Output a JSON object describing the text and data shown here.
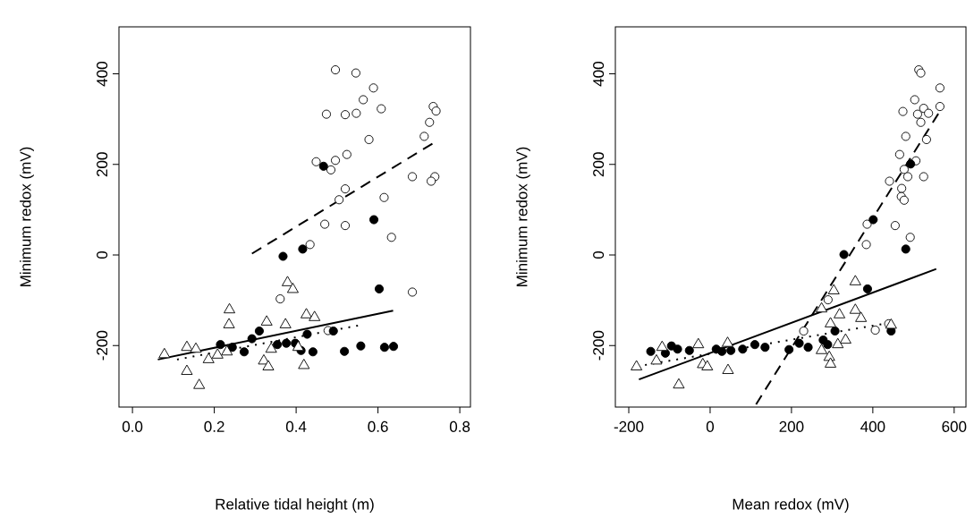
{
  "chart_data": [
    {
      "type": "scatter",
      "xlabel": "Relative tidal height (m)",
      "ylabel": "Minimum redox (mV)",
      "xlim": [
        -0.033,
        0.826
      ],
      "ylim": [
        -336,
        504
      ],
      "xticks": [
        {
          "value": 0,
          "label": "0.0"
        },
        {
          "value": 0.2,
          "label": "0.2"
        },
        {
          "value": 0.4,
          "label": "0.4"
        },
        {
          "value": 0.6,
          "label": "0.6"
        },
        {
          "value": 0.8,
          "label": "0.8"
        }
      ],
      "yticks": [
        -200,
        0,
        200,
        400
      ],
      "series": [
        {
          "color": "#000000",
          "marker": "circle",
          "x": [
            0.496,
            0.546,
            0.589,
            0.564,
            0.608,
            0.474,
            0.52,
            0.547,
            0.735,
            0.742,
            0.726,
            0.578,
            0.713,
            0.524,
            0.449,
            0.496,
            0.485,
            0.684,
            0.739,
            0.73,
            0.52,
            0.505,
            0.615,
            0.47,
            0.52,
            0.633,
            0.434,
            0.684,
            0.361,
            0.478
          ],
          "values": [
            409,
            402,
            369,
            343,
            323,
            311,
            310,
            313,
            328,
            318,
            293,
            255,
            262,
            222,
            206,
            209,
            188,
            173,
            173,
            163,
            146,
            122,
            127,
            68,
            65,
            39,
            23,
            -82,
            -97,
            -167
          ]
        },
        {
          "color": "#000000",
          "marker": "circle",
          "x": [
            0.467,
            0.59,
            0.416,
            0.368,
            0.603,
            0.491,
            0.427,
            0.31,
            0.292,
            0.215,
            0.273,
            0.376,
            0.412,
            0.441,
            0.518,
            0.558,
            0.616,
            0.638,
            0.244,
            0.354,
            0.398
          ],
          "values": [
            196,
            78,
            13,
            -3,
            -75,
            -168,
            -175,
            -168,
            -185,
            -198,
            -214,
            -195,
            -211,
            -214,
            -213,
            -201,
            -204,
            -202,
            -204,
            -198,
            -195
          ]
        },
        {
          "color": "#000000",
          "marker": "triangle",
          "x": [
            0.078,
            0.133,
            0.155,
            0.133,
            0.163,
            0.186,
            0.237,
            0.236,
            0.231,
            0.328,
            0.379,
            0.392,
            0.374,
            0.425,
            0.445,
            0.321,
            0.332,
            0.419,
            0.339,
            0.405,
            0.208
          ],
          "values": [
            -220,
            -204,
            -208,
            -257,
            -288,
            -231,
            -121,
            -154,
            -214,
            -148,
            -61,
            -76,
            -154,
            -132,
            -138,
            -234,
            -247,
            -244,
            -208,
            -204,
            -221
          ]
        },
        {
          "type": "line",
          "color": "#000000",
          "marker": "none",
          "line_style": "dashed",
          "x": [
            0.292,
            0.733
          ],
          "values": [
            3,
            246
          ]
        },
        {
          "type": "line",
          "color": "#000000",
          "marker": "none",
          "line_style": "solid",
          "x": [
            0.062,
            0.637
          ],
          "values": [
            -231,
            -123
          ]
        },
        {
          "type": "line",
          "color": "#000000",
          "marker": "none",
          "line_style": "dotted",
          "x": [
            0.109,
            0.551
          ],
          "values": [
            -231,
            -156
          ]
        }
      ]
    },
    {
      "type": "scatter",
      "xlabel": "Mean redox (mV)",
      "ylabel": "Minimum redox (mV)",
      "xlim": [
        -233,
        629
      ],
      "ylim": [
        -336,
        504
      ],
      "xticks": [
        -200,
        0,
        200,
        400,
        600
      ],
      "yticks": [
        -200,
        0,
        200,
        400
      ],
      "series": [
        {
          "color": "#000000",
          "marker": "circle",
          "x": [
            513,
            518,
            565,
            503,
            565,
            474,
            525,
            510,
            537,
            518,
            481,
            532,
            466,
            506,
            477,
            486,
            525,
            441,
            471,
            470,
            477,
            386,
            455,
            492,
            384,
            290,
            230,
            406,
            439
          ],
          "values": [
            409,
            402,
            369,
            343,
            328,
            317,
            324,
            311,
            313,
            293,
            262,
            255,
            222,
            208,
            189,
            173,
            173,
            163,
            147,
            129,
            121,
            68,
            65,
            39,
            23,
            -99,
            -168,
            -166,
            -152
          ]
        },
        {
          "color": "#000000",
          "marker": "circle",
          "x": [
            493,
            401,
            481,
            329,
            387,
            445,
            278,
            289,
            307,
            241,
            219,
            194,
            135,
            110,
            80,
            51,
            29,
            15,
            -51,
            -80,
            -95,
            -110,
            -146
          ],
          "values": [
            201,
            78,
            13,
            1,
            -75,
            -168,
            -188,
            -198,
            -168,
            -204,
            -195,
            -209,
            -204,
            -198,
            -208,
            -211,
            -213,
            -208,
            -211,
            -208,
            -201,
            -217,
            -213
          ]
        },
        {
          "color": "#000000",
          "marker": "triangle",
          "x": [
            -181,
            -77,
            -29,
            -18,
            -7,
            44,
            43,
            -132,
            -118,
            357,
            304,
            274,
            318,
            357,
            371,
            296,
            333,
            314,
            274,
            293,
            296,
            445
          ],
          "values": [
            -247,
            -287,
            -198,
            -242,
            -247,
            -255,
            -195,
            -234,
            -204,
            -59,
            -79,
            -119,
            -132,
            -122,
            -140,
            -152,
            -188,
            -198,
            -211,
            -226,
            -241,
            -155
          ]
        },
        {
          "type": "line",
          "color": "#000000",
          "marker": "none",
          "line_style": "dashed",
          "x": [
            113,
            561
          ],
          "values": [
            -330,
            312
          ]
        },
        {
          "type": "line",
          "color": "#000000",
          "marker": "none",
          "line_style": "solid",
          "x": [
            -175,
            556
          ],
          "values": [
            -275,
            -31
          ]
        },
        {
          "type": "line",
          "color": "#000000",
          "marker": "none",
          "line_style": "dotted",
          "x": [
            -160,
            440
          ],
          "values": [
            -243,
            -150
          ]
        }
      ]
    }
  ]
}
